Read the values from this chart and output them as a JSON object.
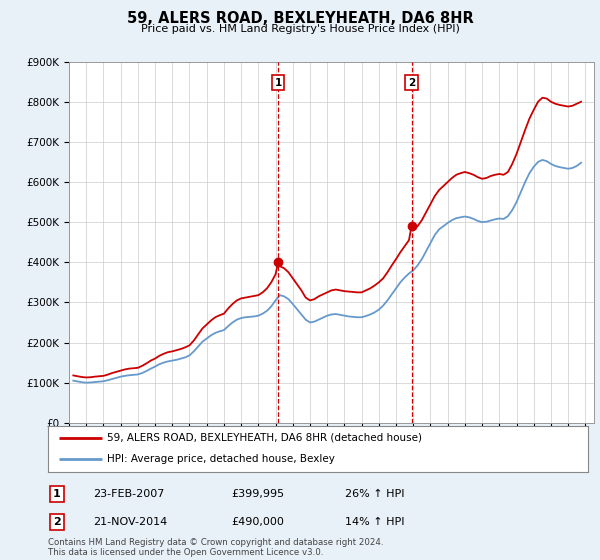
{
  "title": "59, ALERS ROAD, BEXLEYHEATH, DA6 8HR",
  "subtitle": "Price paid vs. HM Land Registry's House Price Index (HPI)",
  "ylabel_ticks": [
    "£0",
    "£100K",
    "£200K",
    "£300K",
    "£400K",
    "£500K",
    "£600K",
    "£700K",
    "£800K",
    "£900K"
  ],
  "ylim": [
    0,
    900000
  ],
  "xlim_start": 1995.0,
  "xlim_end": 2025.5,
  "red_color": "#cc0000",
  "blue_color": "#6699cc",
  "marker1_x": 2007.15,
  "marker1_y": 399995,
  "marker1_label": "1",
  "marker2_x": 2014.9,
  "marker2_y": 490000,
  "marker2_label": "2",
  "vline1_x": 2007.15,
  "vline2_x": 2014.9,
  "legend_line1": "59, ALERS ROAD, BEXLEYHEATH, DA6 8HR (detached house)",
  "legend_line2": "HPI: Average price, detached house, Bexley",
  "table_row1": [
    "1",
    "23-FEB-2007",
    "£399,995",
    "26% ↑ HPI"
  ],
  "table_row2": [
    "2",
    "21-NOV-2014",
    "£490,000",
    "14% ↑ HPI"
  ],
  "footnote": "Contains HM Land Registry data © Crown copyright and database right 2024.\nThis data is licensed under the Open Government Licence v3.0.",
  "background_color": "#e8f0f8",
  "plot_bg_color": "#ffffff",
  "red_hpi_data": [
    [
      1995.25,
      118000
    ],
    [
      1995.5,
      116000
    ],
    [
      1995.75,
      114000
    ],
    [
      1996.0,
      113000
    ],
    [
      1996.25,
      113500
    ],
    [
      1996.5,
      115000
    ],
    [
      1996.75,
      116000
    ],
    [
      1997.0,
      117000
    ],
    [
      1997.25,
      120000
    ],
    [
      1997.5,
      124000
    ],
    [
      1997.75,
      127000
    ],
    [
      1998.0,
      130000
    ],
    [
      1998.25,
      133000
    ],
    [
      1998.5,
      135000
    ],
    [
      1998.75,
      136000
    ],
    [
      1999.0,
      137000
    ],
    [
      1999.25,
      142000
    ],
    [
      1999.5,
      148000
    ],
    [
      1999.75,
      155000
    ],
    [
      2000.0,
      160000
    ],
    [
      2000.25,
      167000
    ],
    [
      2000.5,
      172000
    ],
    [
      2000.75,
      176000
    ],
    [
      2001.0,
      178000
    ],
    [
      2001.25,
      181000
    ],
    [
      2001.5,
      184000
    ],
    [
      2001.75,
      188000
    ],
    [
      2002.0,
      193000
    ],
    [
      2002.25,
      205000
    ],
    [
      2002.5,
      220000
    ],
    [
      2002.75,
      235000
    ],
    [
      2003.0,
      245000
    ],
    [
      2003.25,
      255000
    ],
    [
      2003.5,
      263000
    ],
    [
      2003.75,
      268000
    ],
    [
      2004.0,
      272000
    ],
    [
      2004.25,
      285000
    ],
    [
      2004.5,
      296000
    ],
    [
      2004.75,
      305000
    ],
    [
      2005.0,
      310000
    ],
    [
      2005.25,
      312000
    ],
    [
      2005.5,
      314000
    ],
    [
      2005.75,
      316000
    ],
    [
      2006.0,
      318000
    ],
    [
      2006.25,
      325000
    ],
    [
      2006.5,
      335000
    ],
    [
      2006.75,
      350000
    ],
    [
      2007.0,
      370000
    ],
    [
      2007.15,
      399995
    ],
    [
      2007.25,
      390000
    ],
    [
      2007.5,
      385000
    ],
    [
      2007.75,
      375000
    ],
    [
      2008.0,
      360000
    ],
    [
      2008.25,
      345000
    ],
    [
      2008.5,
      330000
    ],
    [
      2008.75,
      312000
    ],
    [
      2009.0,
      305000
    ],
    [
      2009.25,
      308000
    ],
    [
      2009.5,
      315000
    ],
    [
      2009.75,
      320000
    ],
    [
      2010.0,
      325000
    ],
    [
      2010.25,
      330000
    ],
    [
      2010.5,
      332000
    ],
    [
      2010.75,
      330000
    ],
    [
      2011.0,
      328000
    ],
    [
      2011.25,
      327000
    ],
    [
      2011.5,
      326000
    ],
    [
      2011.75,
      325000
    ],
    [
      2012.0,
      325000
    ],
    [
      2012.25,
      330000
    ],
    [
      2012.5,
      335000
    ],
    [
      2012.75,
      342000
    ],
    [
      2013.0,
      350000
    ],
    [
      2013.25,
      360000
    ],
    [
      2013.5,
      375000
    ],
    [
      2013.75,
      392000
    ],
    [
      2014.0,
      408000
    ],
    [
      2014.25,
      425000
    ],
    [
      2014.5,
      440000
    ],
    [
      2014.75,
      455000
    ],
    [
      2014.9,
      490000
    ],
    [
      2015.0,
      480000
    ],
    [
      2015.25,
      490000
    ],
    [
      2015.5,
      505000
    ],
    [
      2015.75,
      525000
    ],
    [
      2016.0,
      545000
    ],
    [
      2016.25,
      565000
    ],
    [
      2016.5,
      580000
    ],
    [
      2016.75,
      590000
    ],
    [
      2017.0,
      600000
    ],
    [
      2017.25,
      610000
    ],
    [
      2017.5,
      618000
    ],
    [
      2017.75,
      622000
    ],
    [
      2018.0,
      625000
    ],
    [
      2018.25,
      622000
    ],
    [
      2018.5,
      618000
    ],
    [
      2018.75,
      612000
    ],
    [
      2019.0,
      608000
    ],
    [
      2019.25,
      610000
    ],
    [
      2019.5,
      615000
    ],
    [
      2019.75,
      618000
    ],
    [
      2020.0,
      620000
    ],
    [
      2020.25,
      618000
    ],
    [
      2020.5,
      625000
    ],
    [
      2020.75,
      645000
    ],
    [
      2021.0,
      670000
    ],
    [
      2021.25,
      700000
    ],
    [
      2021.5,
      730000
    ],
    [
      2021.75,
      758000
    ],
    [
      2022.0,
      780000
    ],
    [
      2022.25,
      800000
    ],
    [
      2022.5,
      810000
    ],
    [
      2022.75,
      808000
    ],
    [
      2023.0,
      800000
    ],
    [
      2023.25,
      795000
    ],
    [
      2023.5,
      792000
    ],
    [
      2023.75,
      790000
    ],
    [
      2024.0,
      788000
    ],
    [
      2024.25,
      790000
    ],
    [
      2024.5,
      795000
    ],
    [
      2024.75,
      800000
    ]
  ],
  "blue_hpi_data": [
    [
      1995.25,
      105000
    ],
    [
      1995.5,
      103000
    ],
    [
      1995.75,
      101000
    ],
    [
      1996.0,
      100000
    ],
    [
      1996.25,
      100500
    ],
    [
      1996.5,
      101500
    ],
    [
      1996.75,
      102500
    ],
    [
      1997.0,
      103500
    ],
    [
      1997.25,
      106000
    ],
    [
      1997.5,
      109000
    ],
    [
      1997.75,
      112000
    ],
    [
      1998.0,
      115000
    ],
    [
      1998.25,
      117000
    ],
    [
      1998.5,
      118500
    ],
    [
      1998.75,
      119500
    ],
    [
      1999.0,
      120500
    ],
    [
      1999.25,
      124000
    ],
    [
      1999.5,
      129000
    ],
    [
      1999.75,
      135000
    ],
    [
      2000.0,
      140000
    ],
    [
      2000.25,
      146000
    ],
    [
      2000.5,
      150000
    ],
    [
      2000.75,
      153000
    ],
    [
      2001.0,
      155000
    ],
    [
      2001.25,
      157000
    ],
    [
      2001.5,
      160000
    ],
    [
      2001.75,
      163000
    ],
    [
      2002.0,
      168000
    ],
    [
      2002.25,
      178000
    ],
    [
      2002.5,
      190000
    ],
    [
      2002.75,
      202000
    ],
    [
      2003.0,
      210000
    ],
    [
      2003.25,
      218000
    ],
    [
      2003.5,
      224000
    ],
    [
      2003.75,
      228000
    ],
    [
      2004.0,
      231000
    ],
    [
      2004.25,
      241000
    ],
    [
      2004.5,
      250000
    ],
    [
      2004.75,
      257000
    ],
    [
      2005.0,
      261000
    ],
    [
      2005.25,
      263000
    ],
    [
      2005.5,
      264000
    ],
    [
      2005.75,
      265000
    ],
    [
      2006.0,
      267000
    ],
    [
      2006.25,
      272000
    ],
    [
      2006.5,
      279000
    ],
    [
      2006.75,
      290000
    ],
    [
      2007.0,
      305000
    ],
    [
      2007.25,
      318000
    ],
    [
      2007.5,
      315000
    ],
    [
      2007.75,
      308000
    ],
    [
      2008.0,
      296000
    ],
    [
      2008.25,
      283000
    ],
    [
      2008.5,
      270000
    ],
    [
      2008.75,
      257000
    ],
    [
      2009.0,
      250000
    ],
    [
      2009.25,
      252000
    ],
    [
      2009.5,
      257000
    ],
    [
      2009.75,
      262000
    ],
    [
      2010.0,
      267000
    ],
    [
      2010.25,
      270000
    ],
    [
      2010.5,
      271000
    ],
    [
      2010.75,
      269000
    ],
    [
      2011.0,
      267000
    ],
    [
      2011.25,
      265000
    ],
    [
      2011.5,
      264000
    ],
    [
      2011.75,
      263000
    ],
    [
      2012.0,
      263000
    ],
    [
      2012.25,
      266000
    ],
    [
      2012.5,
      270000
    ],
    [
      2012.75,
      275000
    ],
    [
      2013.0,
      282000
    ],
    [
      2013.25,
      292000
    ],
    [
      2013.5,
      305000
    ],
    [
      2013.75,
      320000
    ],
    [
      2014.0,
      335000
    ],
    [
      2014.25,
      350000
    ],
    [
      2014.5,
      362000
    ],
    [
      2014.75,
      372000
    ],
    [
      2015.0,
      380000
    ],
    [
      2015.25,
      392000
    ],
    [
      2015.5,
      408000
    ],
    [
      2015.75,
      428000
    ],
    [
      2016.0,
      448000
    ],
    [
      2016.25,
      468000
    ],
    [
      2016.5,
      482000
    ],
    [
      2016.75,
      490000
    ],
    [
      2017.0,
      498000
    ],
    [
      2017.25,
      505000
    ],
    [
      2017.5,
      510000
    ],
    [
      2017.75,
      512000
    ],
    [
      2018.0,
      514000
    ],
    [
      2018.25,
      512000
    ],
    [
      2018.5,
      508000
    ],
    [
      2018.75,
      503000
    ],
    [
      2019.0,
      500000
    ],
    [
      2019.25,
      501000
    ],
    [
      2019.5,
      504000
    ],
    [
      2019.75,
      507000
    ],
    [
      2020.0,
      509000
    ],
    [
      2020.25,
      508000
    ],
    [
      2020.5,
      515000
    ],
    [
      2020.75,
      530000
    ],
    [
      2021.0,
      550000
    ],
    [
      2021.25,
      575000
    ],
    [
      2021.5,
      600000
    ],
    [
      2021.75,
      622000
    ],
    [
      2022.0,
      638000
    ],
    [
      2022.25,
      650000
    ],
    [
      2022.5,
      655000
    ],
    [
      2022.75,
      652000
    ],
    [
      2023.0,
      645000
    ],
    [
      2023.25,
      640000
    ],
    [
      2023.5,
      637000
    ],
    [
      2023.75,
      635000
    ],
    [
      2024.0,
      633000
    ],
    [
      2024.25,
      635000
    ],
    [
      2024.5,
      640000
    ],
    [
      2024.75,
      648000
    ]
  ]
}
